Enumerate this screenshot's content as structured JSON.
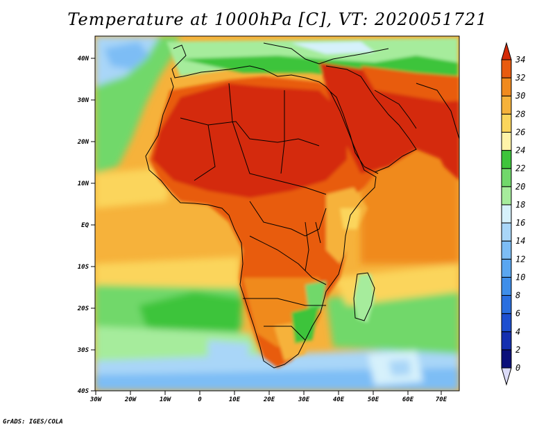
{
  "title": "Temperature at 1000hPa [C], VT: 2020051721",
  "credit": "GrADS: IGES/COLA",
  "map": {
    "lat_labels": [
      "40N",
      "30N",
      "20N",
      "10N",
      "EQ",
      "10S",
      "20S",
      "30S",
      "40S"
    ],
    "lon_labels": [
      "30W",
      "20W",
      "10W",
      "0",
      "10E",
      "20E",
      "30E",
      "40E",
      "50E",
      "60E",
      "70E"
    ]
  },
  "colorbar": {
    "levels": [
      "0",
      "2",
      "4",
      "6",
      "8",
      "10",
      "12",
      "14",
      "16",
      "18",
      "20",
      "22",
      "24",
      "26",
      "28",
      "30",
      "32",
      "34"
    ],
    "colors": [
      "#0b0f7a",
      "#1530b0",
      "#1d4fd0",
      "#2a6fe0",
      "#3e8eea",
      "#5aa6f0",
      "#7dbdf5",
      "#a9d6f8",
      "#d6f1fb",
      "#a6ec9c",
      "#71d86b",
      "#3ec43b",
      "#fff3a8",
      "#fbd55c",
      "#f6b23b",
      "#f08a1e",
      "#e85b0f",
      "#d42a08",
      "#b81405"
    ],
    "low_arrow_color": "#dcdcf8",
    "high_arrow_color": "#d42a08"
  },
  "colors": {
    "ocean_warm": "#f6b23b",
    "ocean_mid": "#fbd55c",
    "cool_green": "#71d86b",
    "land_hot": "#d42a08",
    "land_warm": "#e85b0f",
    "boundary": "#000000"
  }
}
